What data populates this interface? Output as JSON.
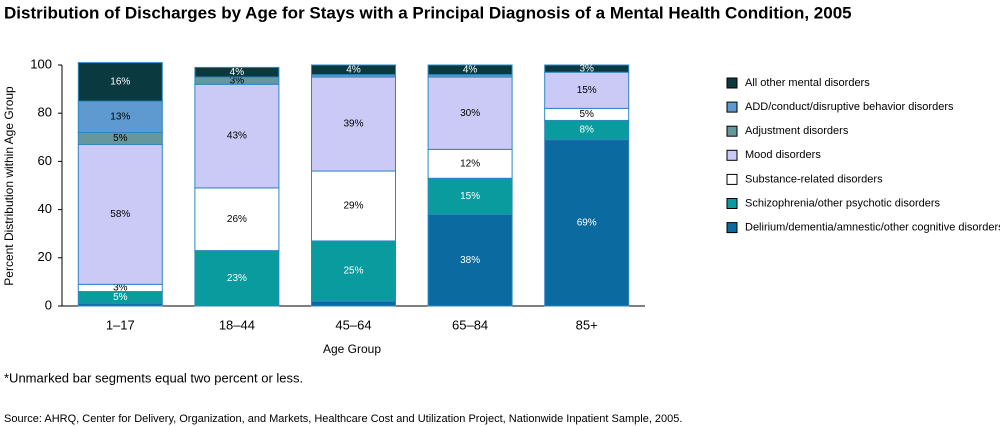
{
  "chart_data": {
    "type": "stacked_bar",
    "title": "Distribution of Discharges by Age for Stays with a Principal Diagnosis of a Mental Health Condition, 2005",
    "y_label": "Percent Distribution within Age Group",
    "x_label": "Age Group",
    "footnote": "*Unmarked bar segments equal two percent or less.",
    "source": "Source:  AHRQ, Center for Delivery, Organization, and Markets, Healthcare Cost and Utilization Project, Nationwide Inpatient Sample, 2005.",
    "categories": [
      "1–17",
      "18–44",
      "45–64",
      "65–84",
      "85+"
    ],
    "ylim": [
      0,
      100
    ],
    "yticks": [
      0,
      20,
      40,
      60,
      80,
      100
    ],
    "series": [
      {
        "name": "Delirium/dementia/amnestic/other cognitive disorders",
        "color": "#0b6a9f",
        "values": [
          1,
          0,
          2,
          38,
          69
        ],
        "value_labels": [
          null,
          null,
          null,
          "38%",
          "69%"
        ]
      },
      {
        "name": "Schizophrenia/other psychotic disorders",
        "color": "#0a9b9e",
        "values": [
          5,
          23,
          25,
          15,
          8
        ],
        "value_labels": [
          "5%",
          "23%",
          "25%",
          "15%",
          "8%"
        ]
      },
      {
        "name": "Substance-related disorders",
        "color": "#ffffff",
        "values": [
          3,
          26,
          29,
          12,
          5
        ],
        "value_labels": [
          "3%",
          "26%",
          "29%",
          "12%",
          "5%"
        ]
      },
      {
        "name": "Mood disorders",
        "color": "#cbcaf7",
        "values": [
          58,
          43,
          39,
          30,
          15
        ],
        "value_labels": [
          "58%",
          "43%",
          "39%",
          "30%",
          "15%"
        ]
      },
      {
        "name": "Adjustment disorders",
        "color": "#66979d",
        "values": [
          5,
          3,
          0,
          0,
          0
        ],
        "value_labels": [
          "5%",
          "3%",
          null,
          null,
          null
        ]
      },
      {
        "name": "ADD/conduct/disruptive behavior disorders",
        "color": "#5e9acf",
        "values": [
          13,
          0,
          1,
          1,
          0
        ],
        "value_labels": [
          "13%",
          null,
          null,
          null,
          null
        ]
      },
      {
        "name": "All other mental disorders",
        "color": "#0a3a3f",
        "values": [
          16,
          4,
          4,
          4,
          3
        ],
        "value_labels": [
          "16%",
          "4%",
          "4%",
          "4%",
          "3%"
        ]
      }
    ]
  }
}
